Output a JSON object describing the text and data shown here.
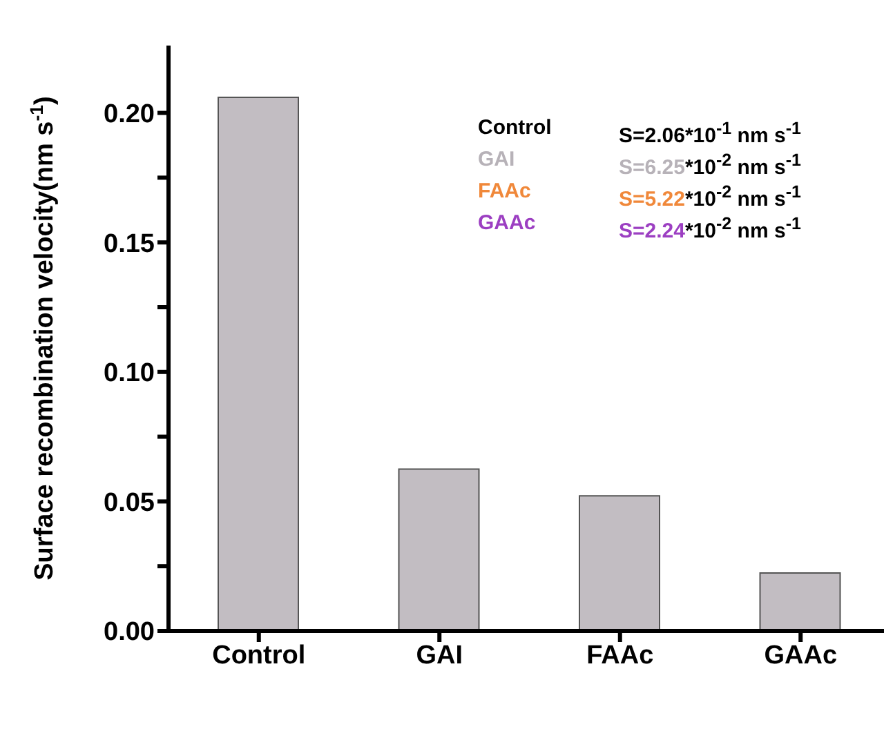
{
  "chart_data": {
    "type": "bar",
    "ylabel": "Surface recombination velocity(nm s$^{-1}$)",
    "categories": [
      "Control",
      "GAI",
      "FAAc",
      "GAAc"
    ],
    "values": [
      0.206,
      0.0625,
      0.0522,
      0.0224
    ],
    "color": "#c2bdc2",
    "ylim": [
      0,
      0.226
    ],
    "yticks": [
      {
        "value": 0,
        "label": "0.00"
      },
      {
        "value": 0.025,
        "label": null
      },
      {
        "value": 0.05,
        "label": "0.05"
      },
      {
        "value": 0.075,
        "label": null
      },
      {
        "value": 0.1,
        "label": "0.10"
      },
      {
        "value": 0.125,
        "label": null
      },
      {
        "value": 0.15,
        "label": "0.15"
      },
      {
        "value": 0.175,
        "label": null
      },
      {
        "value": 0.2,
        "label": "0.20"
      }
    ],
    "annotations": [
      "Control",
      "S=2.06*10$^{-1}$ nm s$^{-1}$",
      "GAI",
      "S=6.25*10$^{-2}$ nm s$^{-1}$",
      "FAAc",
      "S=5.22*10$^{-2}$ nm s$^{-1}$",
      "GAAc",
      "S=2.24*10$^{-2}$ nm s$^{-1}$"
    ]
  }
}
